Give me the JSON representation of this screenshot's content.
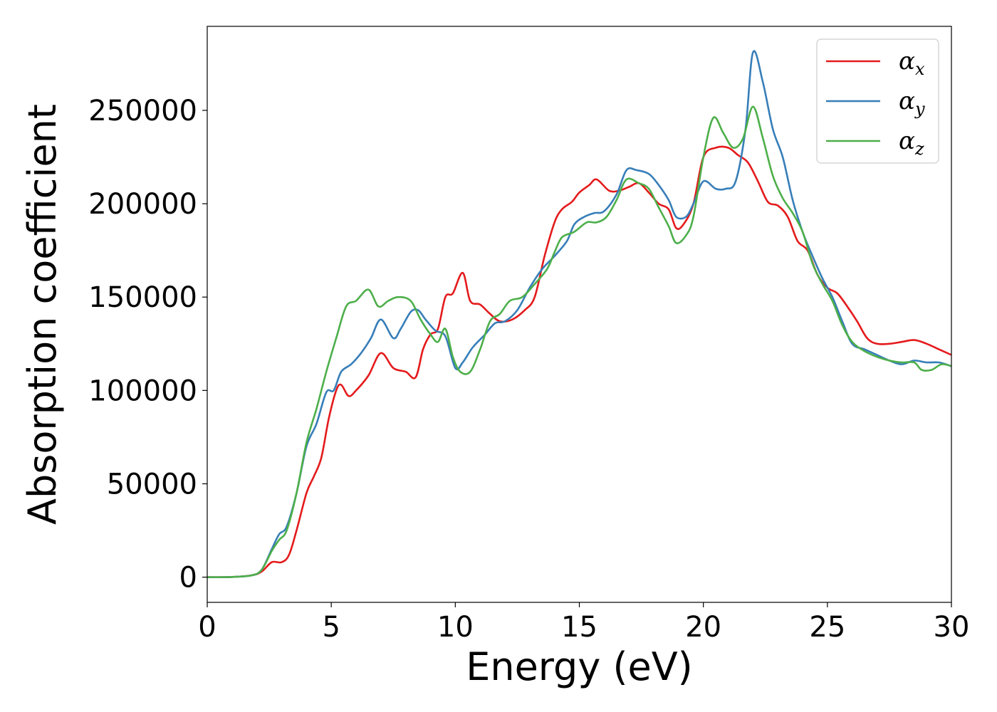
{
  "chart_data": {
    "type": "line",
    "xlabel": "Energy (eV)",
    "ylabel": "Absorption coefficient",
    "xlim": [
      0,
      30
    ],
    "ylim": [
      -13500,
      295000
    ],
    "x_ticks": [
      0,
      5,
      10,
      15,
      20,
      25,
      30
    ],
    "x_tick_labels": [
      "0",
      "5",
      "10",
      "15",
      "20",
      "25",
      "30"
    ],
    "y_ticks": [
      0,
      50000,
      100000,
      150000,
      200000,
      250000
    ],
    "y_tick_labels": [
      "0",
      "50000",
      "100000",
      "150000",
      "200000",
      "250000"
    ],
    "grid": false,
    "legend_position": "top-right",
    "series": [
      {
        "name": "α",
        "subscript": "x",
        "color": "#e41a1c",
        "points": [
          [
            0,
            0
          ],
          [
            1,
            100
          ],
          [
            1.8,
            1000
          ],
          [
            2.2,
            3000
          ],
          [
            2.6,
            8000
          ],
          [
            3.0,
            8000
          ],
          [
            3.3,
            12000
          ],
          [
            3.6,
            25000
          ],
          [
            4.0,
            45000
          ],
          [
            4.3,
            54000
          ],
          [
            4.6,
            64000
          ],
          [
            4.9,
            85000
          ],
          [
            5.2,
            100000
          ],
          [
            5.4,
            103000
          ],
          [
            5.7,
            97000
          ],
          [
            6.0,
            100000
          ],
          [
            6.5,
            108000
          ],
          [
            7.0,
            120000
          ],
          [
            7.5,
            112000
          ],
          [
            8.0,
            110000
          ],
          [
            8.4,
            107000
          ],
          [
            8.7,
            122000
          ],
          [
            9.0,
            130000
          ],
          [
            9.3,
            133000
          ],
          [
            9.6,
            150000
          ],
          [
            9.9,
            152000
          ],
          [
            10.3,
            163000
          ],
          [
            10.6,
            148000
          ],
          [
            11.0,
            146000
          ],
          [
            11.4,
            141000
          ],
          [
            11.8,
            137000
          ],
          [
            12.3,
            138000
          ],
          [
            12.8,
            143000
          ],
          [
            13.2,
            150000
          ],
          [
            13.6,
            172000
          ],
          [
            14.0,
            190000
          ],
          [
            14.3,
            197000
          ],
          [
            14.7,
            201000
          ],
          [
            15.0,
            206000
          ],
          [
            15.4,
            210000
          ],
          [
            15.7,
            213000
          ],
          [
            16.2,
            207000
          ],
          [
            16.6,
            207000
          ],
          [
            17.0,
            209000
          ],
          [
            17.4,
            211000
          ],
          [
            17.8,
            206000
          ],
          [
            18.2,
            200000
          ],
          [
            18.6,
            197000
          ],
          [
            18.9,
            187000
          ],
          [
            19.2,
            189000
          ],
          [
            19.6,
            200000
          ],
          [
            20.0,
            225000
          ],
          [
            20.5,
            230000
          ],
          [
            21.0,
            230000
          ],
          [
            21.4,
            226000
          ],
          [
            21.8,
            222000
          ],
          [
            22.2,
            212000
          ],
          [
            22.6,
            201000
          ],
          [
            23.0,
            199000
          ],
          [
            23.4,
            193000
          ],
          [
            23.8,
            180000
          ],
          [
            24.2,
            175000
          ],
          [
            24.6,
            162000
          ],
          [
            25.0,
            155000
          ],
          [
            25.4,
            152000
          ],
          [
            25.8,
            145000
          ],
          [
            26.2,
            137000
          ],
          [
            26.6,
            128000
          ],
          [
            27.0,
            125000
          ],
          [
            27.5,
            125000
          ],
          [
            28.0,
            126000
          ],
          [
            28.5,
            127000
          ],
          [
            29.0,
            125000
          ],
          [
            29.5,
            122000
          ],
          [
            30,
            119000
          ]
        ]
      },
      {
        "name": "α",
        "subscript": "y",
        "color": "#377eb8",
        "points": [
          [
            0,
            0
          ],
          [
            1,
            100
          ],
          [
            1.8,
            1000
          ],
          [
            2.2,
            4000
          ],
          [
            2.6,
            15000
          ],
          [
            2.9,
            23000
          ],
          [
            3.2,
            27000
          ],
          [
            3.6,
            45000
          ],
          [
            4.0,
            70000
          ],
          [
            4.4,
            82000
          ],
          [
            4.8,
            99000
          ],
          [
            5.1,
            100000
          ],
          [
            5.4,
            110000
          ],
          [
            5.8,
            114000
          ],
          [
            6.2,
            120000
          ],
          [
            6.6,
            128000
          ],
          [
            7.0,
            138000
          ],
          [
            7.5,
            128000
          ],
          [
            7.8,
            133000
          ],
          [
            8.2,
            142000
          ],
          [
            8.5,
            143000
          ],
          [
            8.8,
            138000
          ],
          [
            9.2,
            132000
          ],
          [
            9.6,
            129000
          ],
          [
            10.0,
            112000
          ],
          [
            10.3,
            115000
          ],
          [
            10.7,
            123000
          ],
          [
            11.2,
            130000
          ],
          [
            11.6,
            136000
          ],
          [
            12.0,
            137000
          ],
          [
            12.5,
            143000
          ],
          [
            13.0,
            155000
          ],
          [
            13.5,
            165000
          ],
          [
            14.0,
            172000
          ],
          [
            14.5,
            180000
          ],
          [
            14.8,
            189000
          ],
          [
            15.2,
            193000
          ],
          [
            15.6,
            195000
          ],
          [
            16.0,
            196000
          ],
          [
            16.5,
            205000
          ],
          [
            16.9,
            218000
          ],
          [
            17.3,
            218000
          ],
          [
            17.8,
            216000
          ],
          [
            18.2,
            210000
          ],
          [
            18.6,
            202000
          ],
          [
            18.9,
            193000
          ],
          [
            19.3,
            193000
          ],
          [
            19.6,
            200000
          ],
          [
            20.0,
            212000
          ],
          [
            20.5,
            208000
          ],
          [
            20.9,
            208000
          ],
          [
            21.3,
            212000
          ],
          [
            21.7,
            240000
          ],
          [
            22.0,
            281000
          ],
          [
            22.4,
            265000
          ],
          [
            22.8,
            240000
          ],
          [
            23.2,
            225000
          ],
          [
            23.6,
            202000
          ],
          [
            24.0,
            185000
          ],
          [
            24.4,
            172000
          ],
          [
            24.8,
            160000
          ],
          [
            25.2,
            150000
          ],
          [
            25.6,
            137000
          ],
          [
            26.0,
            125000
          ],
          [
            26.5,
            122000
          ],
          [
            27.0,
            119000
          ],
          [
            27.5,
            116000
          ],
          [
            28.0,
            114000
          ],
          [
            28.5,
            116000
          ],
          [
            29.0,
            115000
          ],
          [
            29.5,
            115000
          ],
          [
            30,
            113000
          ]
        ]
      },
      {
        "name": "α",
        "subscript": "z",
        "color": "#4daf4a",
        "points": [
          [
            0,
            0
          ],
          [
            1,
            100
          ],
          [
            1.8,
            1000
          ],
          [
            2.2,
            4000
          ],
          [
            2.6,
            14000
          ],
          [
            2.9,
            20000
          ],
          [
            3.2,
            25000
          ],
          [
            3.6,
            45000
          ],
          [
            4.0,
            72000
          ],
          [
            4.4,
            90000
          ],
          [
            4.8,
            110000
          ],
          [
            5.2,
            128000
          ],
          [
            5.6,
            145000
          ],
          [
            6.0,
            148000
          ],
          [
            6.5,
            154000
          ],
          [
            6.9,
            145000
          ],
          [
            7.3,
            148000
          ],
          [
            7.7,
            150000
          ],
          [
            8.2,
            148000
          ],
          [
            8.6,
            138000
          ],
          [
            9.0,
            130000
          ],
          [
            9.3,
            126000
          ],
          [
            9.6,
            133000
          ],
          [
            9.9,
            118000
          ],
          [
            10.2,
            110000
          ],
          [
            10.6,
            110000
          ],
          [
            11.0,
            122000
          ],
          [
            11.4,
            137000
          ],
          [
            11.8,
            141000
          ],
          [
            12.2,
            148000
          ],
          [
            12.7,
            150000
          ],
          [
            13.2,
            157000
          ],
          [
            13.7,
            165000
          ],
          [
            14.0,
            174000
          ],
          [
            14.3,
            182000
          ],
          [
            14.8,
            185000
          ],
          [
            15.3,
            190000
          ],
          [
            15.7,
            190000
          ],
          [
            16.1,
            193000
          ],
          [
            16.5,
            202000
          ],
          [
            16.9,
            213000
          ],
          [
            17.4,
            211000
          ],
          [
            17.8,
            208000
          ],
          [
            18.2,
            198000
          ],
          [
            18.6,
            188000
          ],
          [
            18.9,
            179000
          ],
          [
            19.3,
            183000
          ],
          [
            19.6,
            193000
          ],
          [
            20.0,
            225000
          ],
          [
            20.4,
            246000
          ],
          [
            20.8,
            238000
          ],
          [
            21.2,
            230000
          ],
          [
            21.6,
            235000
          ],
          [
            22.0,
            252000
          ],
          [
            22.4,
            235000
          ],
          [
            22.8,
            215000
          ],
          [
            23.2,
            203000
          ],
          [
            23.6,
            195000
          ],
          [
            24.0,
            185000
          ],
          [
            24.4,
            168000
          ],
          [
            24.8,
            157000
          ],
          [
            25.2,
            148000
          ],
          [
            25.6,
            135000
          ],
          [
            26.0,
            126000
          ],
          [
            26.5,
            121000
          ],
          [
            27.0,
            118000
          ],
          [
            27.5,
            116000
          ],
          [
            28.0,
            115000
          ],
          [
            28.5,
            115000
          ],
          [
            28.8,
            111000
          ],
          [
            29.2,
            111000
          ],
          [
            29.6,
            114000
          ],
          [
            30,
            113000
          ]
        ]
      }
    ]
  }
}
